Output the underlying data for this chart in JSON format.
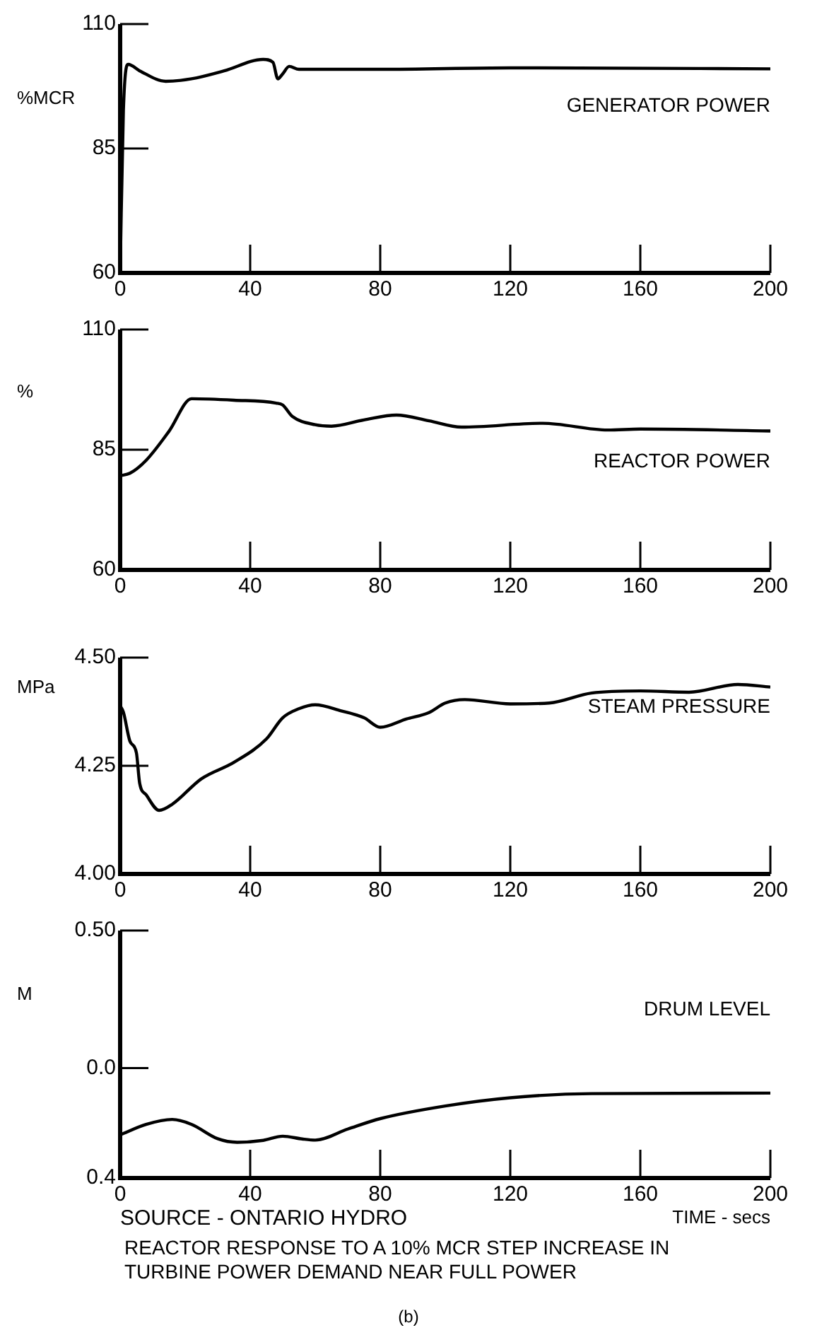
{
  "chart_data": [
    {
      "type": "line",
      "title": "GENERATOR POWER",
      "ylabel": "%MCR",
      "marker": "none",
      "xlim": [
        0,
        200
      ],
      "xticks": [
        0,
        40,
        80,
        120,
        160,
        200
      ],
      "ylim": [
        60,
        110
      ],
      "yticks": [
        60,
        85,
        110
      ],
      "series": [
        {
          "color": "#000000",
          "x": [
            0,
            1,
            2.5,
            6,
            14,
            22,
            32,
            44,
            47,
            48.5,
            50,
            52,
            55,
            80,
            120,
            200
          ],
          "values": [
            60,
            92.7,
            101.9,
            100.6,
            98.5,
            99,
            100.6,
            102.9,
            102.3,
            99,
            100,
            101.5,
            100.9,
            100.9,
            101.2,
            101
          ]
        }
      ]
    },
    {
      "type": "line",
      "title": "REACTOR POWER",
      "ylabel": "%",
      "marker": "none",
      "xlim": [
        0,
        200
      ],
      "xticks": [
        0,
        40,
        80,
        120,
        160,
        200
      ],
      "ylim": [
        60,
        110
      ],
      "yticks": [
        60,
        85,
        110
      ],
      "series": [
        {
          "color": "#000000",
          "x": [
            0,
            3,
            8,
            15,
            22,
            35,
            48,
            50,
            53,
            60,
            65,
            75,
            85,
            95,
            105,
            130,
            150,
            160,
            200
          ],
          "values": [
            79.6,
            80.1,
            82.8,
            88.8,
            95.6,
            95.3,
            94.7,
            94.3,
            91.9,
            90.2,
            89.9,
            91.2,
            92.2,
            91,
            89.7,
            90.5,
            89.1,
            89.3,
            88.9
          ]
        }
      ]
    },
    {
      "type": "line",
      "title": "STEAM PRESSURE",
      "ylabel": "MPa",
      "marker": "none",
      "xlim": [
        0,
        200
      ],
      "xticks": [
        0,
        40,
        80,
        120,
        160,
        200
      ],
      "ylim": [
        4.0,
        4.5
      ],
      "yticks": [
        {
          "value": 4.0,
          "label": "4.00"
        },
        {
          "value": 4.25,
          "label": "4.25"
        },
        {
          "value": 4.5,
          "label": "4.50"
        }
      ],
      "series": [
        {
          "color": "#000000",
          "x": [
            0,
            1,
            3,
            5,
            6,
            8,
            12,
            16,
            25,
            35,
            45,
            50,
            55,
            60,
            68,
            75,
            80,
            88,
            95,
            100,
            106,
            120,
            132,
            145,
            160,
            175,
            190,
            200
          ],
          "values": [
            4.389,
            4.374,
            4.307,
            4.28,
            4.21,
            4.183,
            4.147,
            4.161,
            4.22,
            4.258,
            4.312,
            4.361,
            4.382,
            4.391,
            4.377,
            4.361,
            4.339,
            4.358,
            4.373,
            4.395,
            4.403,
            4.393,
            4.395,
            4.418,
            4.423,
            4.42,
            4.438,
            4.432
          ]
        }
      ]
    },
    {
      "type": "line",
      "title": "DRUM LEVEL",
      "ylabel": "M",
      "xlabel": "TIME - secs",
      "marker": "none",
      "xlim": [
        0,
        200
      ],
      "xticks": [
        0,
        40,
        80,
        120,
        160,
        200
      ],
      "ylim": [
        -0.4,
        0.5
      ],
      "yticks": [
        {
          "value": -0.4,
          "label": "0.4"
        },
        {
          "value": 0,
          "label": "0.0"
        },
        {
          "value": 0.5,
          "label": "0.50"
        }
      ],
      "series": [
        {
          "color": "#000000",
          "x": [
            0,
            8,
            16,
            22,
            30,
            36,
            44,
            50,
            56,
            60,
            70,
            80,
            100,
            120,
            145,
            200
          ],
          "values": [
            -0.243,
            -0.205,
            -0.187,
            -0.205,
            -0.257,
            -0.27,
            -0.263,
            -0.248,
            -0.258,
            -0.262,
            -0.222,
            -0.184,
            -0.138,
            -0.108,
            -0.093,
            -0.091
          ]
        }
      ],
      "annotations": [
        "SOURCE - ONTARIO HYDRO",
        "REACTOR RESPONSE TO A 10% MCR STEP INCREASE IN TURBINE POWER DEMAND NEAR FULL POWER",
        "(b)"
      ]
    }
  ]
}
